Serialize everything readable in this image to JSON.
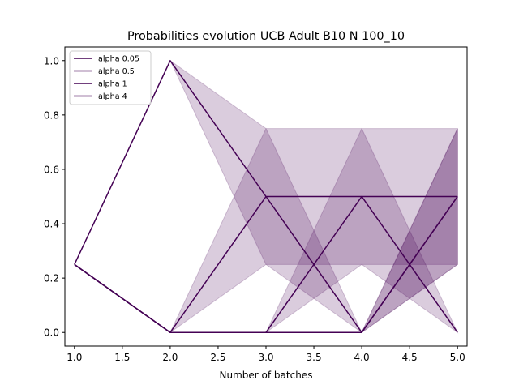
{
  "chart_data": {
    "type": "line",
    "title": "Probabilities evolution UCB Adult B10 N 100_10",
    "xlabel": "Number of batches",
    "ylabel": "",
    "xlim": [
      0.9,
      5.1
    ],
    "ylim": [
      -0.05,
      1.05
    ],
    "xticks": [
      "1.0",
      "1.5",
      "2.0",
      "2.5",
      "3.0",
      "3.5",
      "4.0",
      "4.5",
      "5.0"
    ],
    "yticks": [
      "0.0",
      "0.2",
      "0.4",
      "0.6",
      "0.8",
      "1.0"
    ],
    "grid": false,
    "legend_position": "top-left",
    "color": "#440154",
    "band_opacity": 0.2,
    "series": [
      {
        "name": "alpha 0.05",
        "x": [
          1,
          2,
          3,
          4,
          5
        ],
        "values": [
          0.25,
          1.0,
          0.5,
          0.5,
          0.5
        ],
        "band_low": [
          0.25,
          1.0,
          0.25,
          0.25,
          0.25
        ],
        "band_high": [
          0.25,
          1.0,
          0.75,
          0.75,
          0.75
        ]
      },
      {
        "name": "alpha 0.5",
        "x": [
          1,
          2,
          3,
          4,
          5
        ],
        "values": [
          0.25,
          0.0,
          0.5,
          0.0,
          0.5
        ],
        "band_low": [
          0.25,
          0.0,
          0.25,
          0.0,
          0.25
        ],
        "band_high": [
          0.25,
          0.0,
          0.75,
          0.0,
          0.75
        ]
      },
      {
        "name": "alpha 1",
        "x": [
          1,
          2,
          3,
          4,
          5
        ],
        "values": [
          0.25,
          0.0,
          0.0,
          0.5,
          0.0
        ],
        "band_low": [
          0.25,
          0.0,
          0.0,
          0.25,
          0.0
        ],
        "band_high": [
          0.25,
          0.0,
          0.0,
          0.75,
          0.0
        ]
      },
      {
        "name": "alpha 4",
        "x": [
          1,
          2,
          3,
          4,
          5
        ],
        "values": [
          0.25,
          0.0,
          0.0,
          0.0,
          0.5
        ],
        "band_low": [
          0.25,
          0.0,
          0.0,
          0.0,
          0.25
        ],
        "band_high": [
          0.25,
          0.0,
          0.0,
          0.0,
          0.75
        ]
      }
    ]
  }
}
